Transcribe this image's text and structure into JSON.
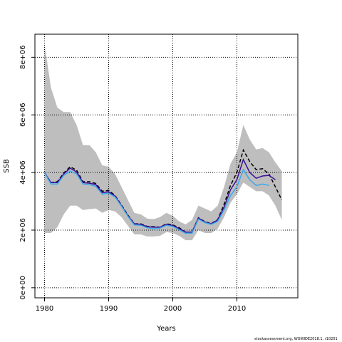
{
  "chart_data": {
    "type": "line",
    "title": "",
    "xlabel": "Years",
    "ylabel": "SSB",
    "xlim": [
      1978.5,
      2019.5
    ],
    "ylim": [
      -350000,
      8800000
    ],
    "x_ticks": [
      1980,
      1990,
      2000,
      2010
    ],
    "x_tick_labels": [
      "1980",
      "1990",
      "2000",
      "2010"
    ],
    "y_ticks": [
      0,
      2000000,
      4000000,
      6000000,
      8000000
    ],
    "y_tick_labels": [
      "0e+00",
      "2e+06",
      "4e+06",
      "6e+06",
      "8e+06"
    ],
    "grid": true,
    "legend": "none",
    "confidence_band": {
      "x": [
        1980,
        1981,
        1982,
        1983,
        1984,
        1985,
        1986,
        1987,
        1988,
        1989,
        1990,
        1991,
        1992,
        1993,
        1994,
        1995,
        1996,
        1997,
        1998,
        1999,
        2000,
        2001,
        2002,
        2003,
        2004,
        2005,
        2006,
        2007,
        2008,
        2009,
        2010,
        2011,
        2012,
        2013,
        2014,
        2015,
        2016,
        2017
      ],
      "lower": [
        1900000,
        1900000,
        2100000,
        2550000,
        2850000,
        2850000,
        2700000,
        2730000,
        2750000,
        2600000,
        2700000,
        2650000,
        2450000,
        2150000,
        1850000,
        1850000,
        1780000,
        1780000,
        1800000,
        1930000,
        1900000,
        1800000,
        1650000,
        1650000,
        2000000,
        1900000,
        1900000,
        2050000,
        2450000,
        2950000,
        3250000,
        3650000,
        3500000,
        3350000,
        3350000,
        3200000,
        2850000,
        2350000
      ],
      "upper": [
        8450000,
        6950000,
        6250000,
        6100000,
        6100000,
        5650000,
        4950000,
        4950000,
        4700000,
        4250000,
        4200000,
        3950000,
        3500000,
        3050000,
        2600000,
        2550000,
        2400000,
        2380000,
        2450000,
        2600000,
        2500000,
        2300000,
        2200000,
        2350000,
        2850000,
        2750000,
        2650000,
        2850000,
        3500000,
        4300000,
        4700000,
        5650000,
        5150000,
        4800000,
        4850000,
        4700000,
        4350000,
        4050000
      ]
    },
    "series": [
      {
        "color": "#000000",
        "style": "dashed",
        "x": [
          1980,
          1981,
          1982,
          1983,
          1984,
          1985,
          1986,
          1987,
          1988,
          1989,
          1990,
          1991,
          1992,
          1993,
          1994,
          1995,
          1996,
          1997,
          1998,
          1999,
          2000,
          2001,
          2002,
          2003,
          2004,
          2005,
          2006,
          2007,
          2008,
          2009,
          2010,
          2011,
          2012,
          2013,
          2014,
          2015,
          2016,
          2017
        ],
        "values": [
          4000000,
          3650000,
          3680000,
          3980000,
          4200000,
          4080000,
          3680000,
          3680000,
          3620000,
          3350000,
          3380000,
          3200000,
          2870000,
          2520000,
          2220000,
          2220000,
          2130000,
          2120000,
          2100000,
          2220000,
          2180000,
          2080000,
          1930000,
          1930000,
          2430000,
          2290000,
          2230000,
          2360000,
          2900000,
          3550000,
          4000000,
          4780000,
          4380000,
          4100000,
          4130000,
          3950000,
          3500000,
          3050000
        ]
      },
      {
        "color": "#3b0f9a",
        "style": "solid",
        "x": [
          1980,
          1981,
          1982,
          1983,
          1984,
          1985,
          1986,
          1987,
          1988,
          1989,
          1990,
          1991,
          1992,
          1993,
          1994,
          1995,
          1996,
          1997,
          1998,
          1999,
          2000,
          2001,
          2002,
          2003,
          2004,
          2005,
          2006,
          2007,
          2008,
          2009,
          2010,
          2011,
          2012,
          2013,
          2014,
          2015,
          2016
        ],
        "values": [
          4000000,
          3650000,
          3650000,
          3950000,
          4150000,
          4020000,
          3650000,
          3630000,
          3580000,
          3300000,
          3330000,
          3180000,
          2850000,
          2500000,
          2220000,
          2200000,
          2120000,
          2100000,
          2100000,
          2200000,
          2160000,
          2050000,
          1930000,
          1930000,
          2420000,
          2280000,
          2220000,
          2350000,
          2800000,
          3400000,
          3750000,
          4450000,
          4000000,
          3800000,
          3880000,
          3900000,
          3750000
        ]
      },
      {
        "color": "#3aa9ea",
        "style": "solid",
        "x": [
          1980,
          1981,
          1982,
          1983,
          1984,
          1985,
          1986,
          1987,
          1988,
          1989,
          1990,
          1991,
          1992,
          1993,
          1994,
          1995,
          1996,
          1997,
          1998,
          1999,
          2000,
          2001,
          2002,
          2003,
          2004,
          2005,
          2006,
          2007,
          2008,
          2009,
          2010,
          2011,
          2012,
          2013,
          2014,
          2015
        ],
        "values": [
          4000000,
          3600000,
          3600000,
          3900000,
          4050000,
          3950000,
          3600000,
          3580000,
          3520000,
          3250000,
          3280000,
          3150000,
          2830000,
          2480000,
          2180000,
          2170000,
          2080000,
          2050000,
          2070000,
          2170000,
          2130000,
          2010000,
          1890000,
          1890000,
          2380000,
          2260000,
          2200000,
          2300000,
          2700000,
          3200000,
          3500000,
          4100000,
          3750000,
          3550000,
          3600000,
          3550000
        ]
      }
    ]
  },
  "credit": "stockassessment.org, WGWIDE2018.1, r10201"
}
